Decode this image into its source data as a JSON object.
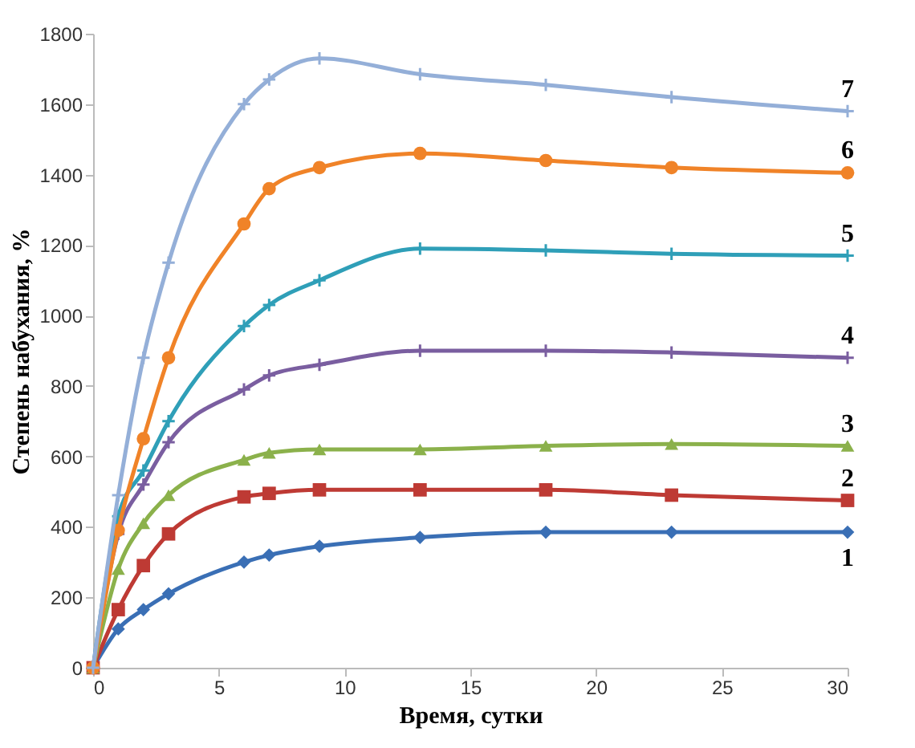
{
  "chart_data": {
    "type": "line",
    "xlabel": "Время, сутки",
    "ylabel": "Степень набухания, %",
    "x": [
      0,
      1,
      2,
      3,
      6,
      7,
      9,
      13,
      18,
      23,
      30
    ],
    "xlim": [
      0,
      30
    ],
    "xticks": [
      0,
      5,
      10,
      15,
      20,
      25,
      30
    ],
    "ylim": [
      0,
      1800
    ],
    "yticks": [
      0,
      200,
      400,
      600,
      800,
      1000,
      1200,
      1400,
      1600,
      1800
    ],
    "grid": false,
    "series": [
      {
        "name": "1",
        "color": "#3a6fb5",
        "marker": "diamond",
        "values": [
          0,
          110,
          165,
          210,
          300,
          320,
          345,
          370,
          385,
          385,
          385
        ]
      },
      {
        "name": "2",
        "color": "#be3a34",
        "marker": "square",
        "values": [
          0,
          165,
          290,
          380,
          485,
          495,
          505,
          505,
          505,
          490,
          475
        ]
      },
      {
        "name": "3",
        "color": "#8bb14b",
        "marker": "triangle",
        "values": [
          0,
          280,
          410,
          490,
          590,
          610,
          620,
          620,
          630,
          635,
          630
        ]
      },
      {
        "name": "4",
        "color": "#7a5ea0",
        "marker": "cross",
        "values": [
          0,
          380,
          520,
          640,
          790,
          830,
          860,
          900,
          900,
          895,
          880
        ]
      },
      {
        "name": "5",
        "color": "#2f9fb8",
        "marker": "cross",
        "values": [
          0,
          430,
          560,
          700,
          970,
          1030,
          1100,
          1190,
          1185,
          1175,
          1170
        ]
      },
      {
        "name": "6",
        "color": "#f08328",
        "marker": "circle",
        "values": [
          0,
          390,
          650,
          880,
          1260,
          1360,
          1420,
          1460,
          1440,
          1420,
          1405
        ]
      },
      {
        "name": "7",
        "color": "#94afd8",
        "marker": "cross",
        "values": [
          0,
          490,
          880,
          1150,
          1600,
          1670,
          1730,
          1685,
          1655,
          1620,
          1580
        ]
      }
    ]
  }
}
